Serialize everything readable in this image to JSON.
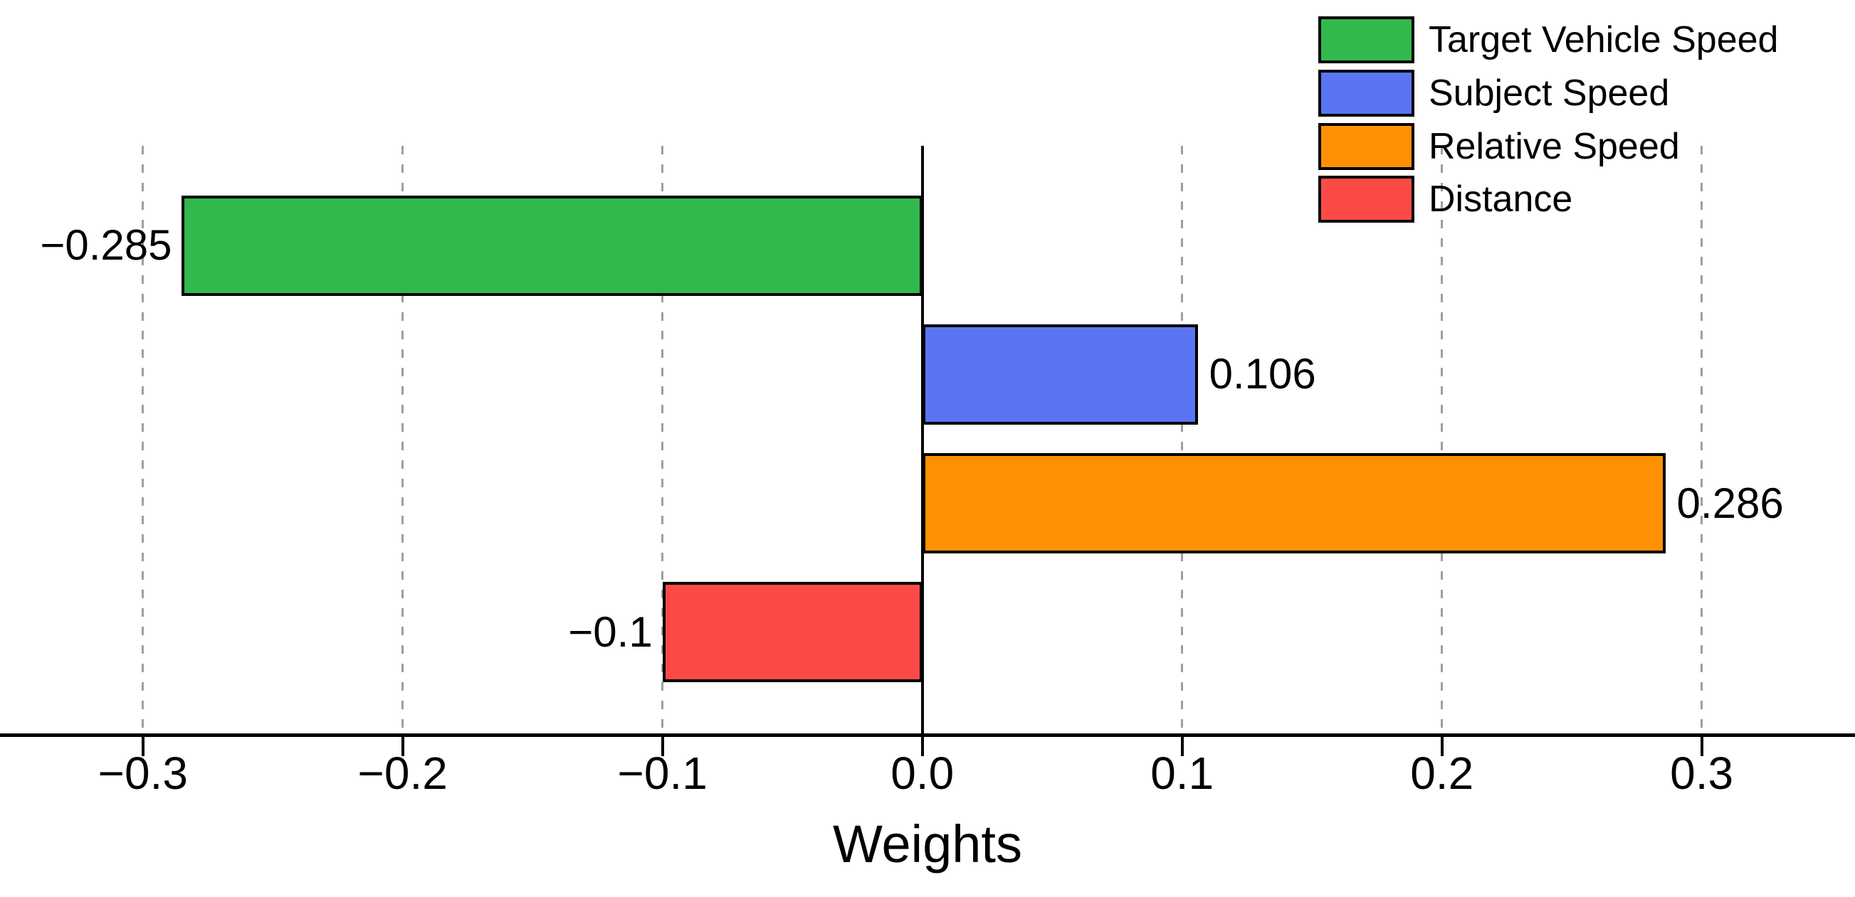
{
  "chart_data": {
    "type": "bar",
    "orientation": "horizontal",
    "title": "",
    "xlabel": "Weights",
    "ylabel": "",
    "xlim": [
      -0.355,
      0.359
    ],
    "grid": true,
    "zero_line": true,
    "legend_position": "top-right",
    "categories": [
      "Target Vehicle Speed",
      "Subject Speed",
      "Relative Speed",
      "Distance"
    ],
    "values": [
      -0.285,
      0.106,
      0.286,
      -0.1
    ],
    "bar_labels": [
      "−0.285",
      "0.106",
      "0.286",
      "−0.1"
    ],
    "colors": [
      "#31B94D",
      "#5A75F1",
      "#FE9103",
      "#FC4B47"
    ],
    "xticks": {
      "values": [
        -0.3,
        -0.2,
        -0.1,
        0,
        0.1,
        0.2,
        0.3
      ],
      "labels": [
        "−0.3",
        "−0.2",
        "−0.1",
        "0.0",
        "0.1",
        "0.2",
        "0.3"
      ]
    },
    "legend": {
      "entries": [
        {
          "label": "Target Vehicle Speed",
          "color": "#31B94D"
        },
        {
          "label": "Subject Speed",
          "color": "#5A75F1"
        },
        {
          "label": "Relative Speed",
          "color": "#FE9103"
        },
        {
          "label": "Distance",
          "color": "#FC4B47"
        }
      ]
    },
    "axis_color": "#000000",
    "gridline_color": "#9E9E9E"
  }
}
